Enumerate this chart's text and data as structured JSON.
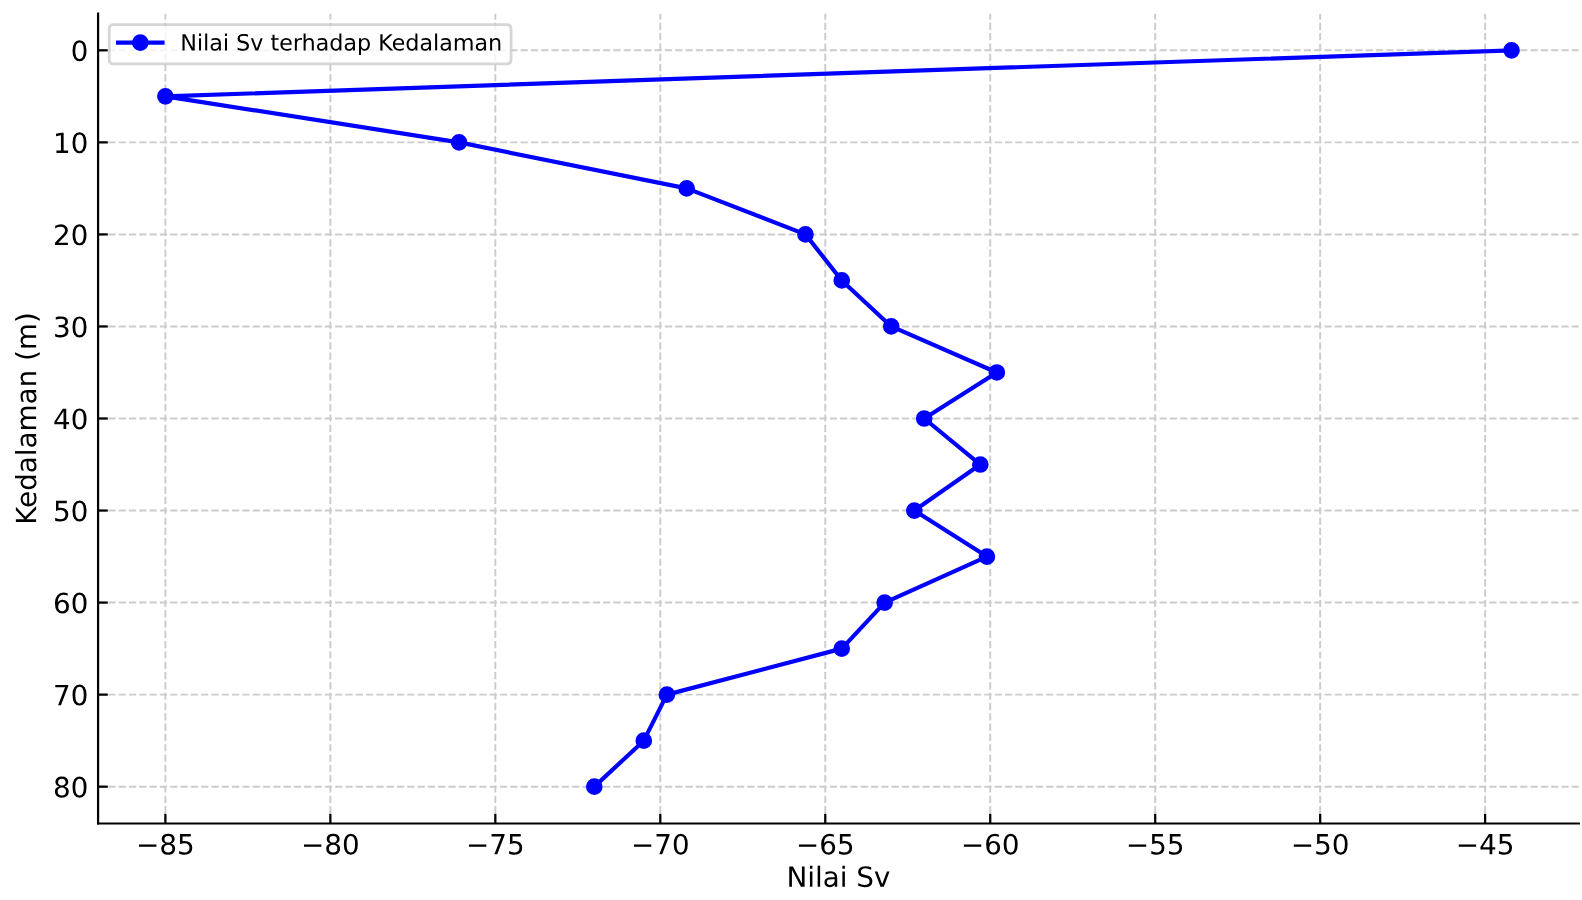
{
  "chart_data": {
    "type": "line",
    "xlabel": "Nilai Sv",
    "ylabel": "Kedalaman (m)",
    "x": [
      -44.2,
      -85,
      -76.1,
      -69.2,
      -65.6,
      -64.5,
      -63.0,
      -59.8,
      -62.0,
      -60.3,
      -62.3,
      -60.1,
      -63.2,
      -64.5,
      -69.8,
      -70.5,
      -72.0
    ],
    "series": [
      {
        "name": "Nilai Sv terhadap Kedalaman",
        "color": "#0000ff",
        "values": [
          0,
          5,
          10,
          15,
          20,
          25,
          30,
          35,
          40,
          45,
          50,
          55,
          60,
          65,
          70,
          75,
          80
        ]
      }
    ],
    "xlim": [
      -87.04,
      -42.16
    ],
    "ylim": [
      84,
      -4
    ],
    "xticks": [
      {
        "value": -85,
        "label": "−85"
      },
      {
        "value": -80,
        "label": "−80"
      },
      {
        "value": -75,
        "label": "−75"
      },
      {
        "value": -70,
        "label": "−70"
      },
      {
        "value": -65,
        "label": "−65"
      },
      {
        "value": -60,
        "label": "−60"
      },
      {
        "value": -55,
        "label": "−55"
      },
      {
        "value": -50,
        "label": "−50"
      },
      {
        "value": -45,
        "label": "−45"
      }
    ],
    "yticks": [
      0,
      10,
      20,
      30,
      40,
      50,
      60,
      70,
      80
    ],
    "grid": true,
    "legend": "top left",
    "marker": "circle",
    "line_style": "solid"
  }
}
